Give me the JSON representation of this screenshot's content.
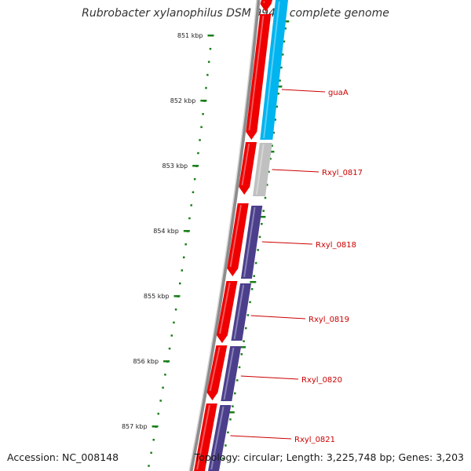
{
  "title": "Rubrobacter xylanophilus DSM 9941, complete genome",
  "footer": {
    "accession": "Accession: NC_008148",
    "summary": "Topology: circular; Length: 3,225,748 bp; Genes: 3,203"
  },
  "colors": {
    "kbp_tick": "#1a7f1a",
    "backbone": "#8c8c8c",
    "forward_cds": "#ee0000",
    "reverse_cds_blue": "#00b4f0",
    "reverse_cds_gray": "#c0c0c0",
    "reverse_cds_purple": "#4b3f8c",
    "gene_label": "#cc0000"
  },
  "ticks": [
    {
      "label": "851 kbp"
    },
    {
      "label": "852 kbp"
    },
    {
      "label": "853 kbp"
    },
    {
      "label": "854 kbp"
    },
    {
      "label": "855 kbp"
    },
    {
      "label": "856 kbp"
    },
    {
      "label": "857 kbp"
    }
  ],
  "gene_labels": [
    {
      "label": "guaA"
    },
    {
      "label": "Rxyl_0817"
    },
    {
      "label": "Rxyl_0818"
    },
    {
      "label": "Rxyl_0819"
    },
    {
      "label": "Rxyl_0820"
    },
    {
      "label": "Rxyl_0821"
    }
  ]
}
